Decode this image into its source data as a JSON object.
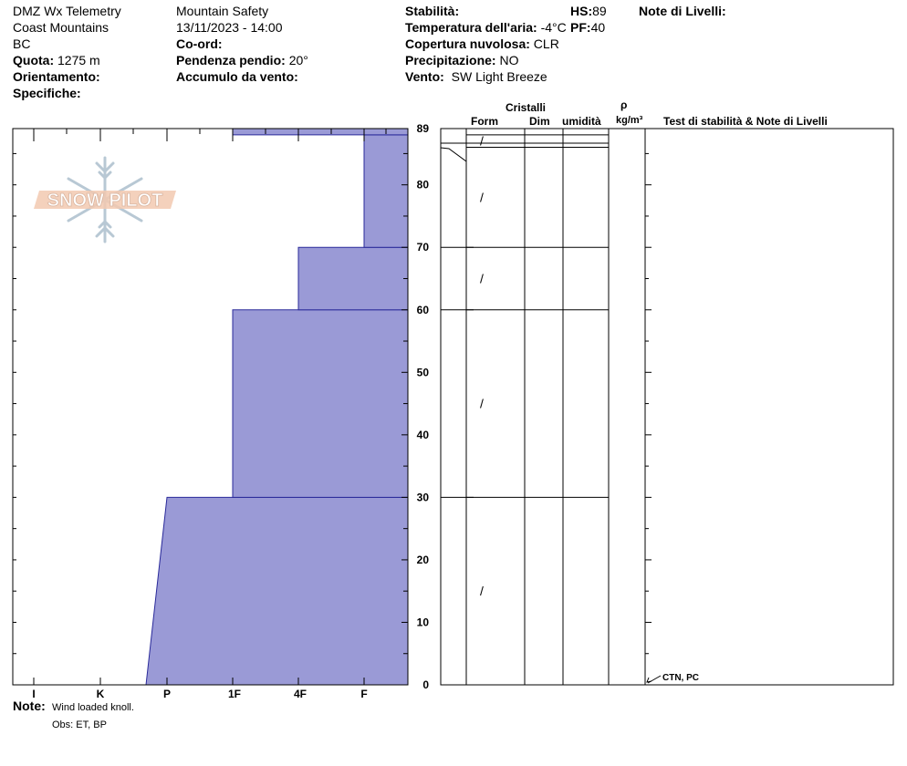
{
  "header": {
    "station": "DMZ Wx Telemetry",
    "range": "Coast Mountains",
    "province": "BC",
    "elevation_label": "Quota:",
    "elevation": "1275 m",
    "aspect_label": "Orientamento:",
    "specifics_label": "Specifiche:",
    "org": "Mountain Safety",
    "datetime": "13/11/2023 - 14:00",
    "coords_label": "Co-ord:",
    "slope_label": "Pendenza pendio:",
    "slope": "20°",
    "windload_label": "Accumulo da vento:",
    "stability_label": "Stabilità:",
    "hs_label": "HS:",
    "hs": "89",
    "airtemp_label": "Temperatura dell'aria:",
    "airtemp": "-4°C",
    "pf_label": "PF:",
    "pf": "40",
    "sky_label": "Copertura nuvolosa:",
    "sky": "CLR",
    "precip_label": "Precipitazione:",
    "precip": "NO",
    "wind_label": "Vento:",
    "wind": "SW Light Breeze",
    "layer_notes_label": "Note di Livelli:"
  },
  "logo": {
    "text": "SNOW PILOT"
  },
  "columns": {
    "crystals": "Cristalli",
    "form": "Form",
    "size": "Dim",
    "moisture": "umidità",
    "rho": "ρ",
    "density_unit": "kg/m³",
    "tests": "Test di stabilità & Note di Livelli"
  },
  "footer": {
    "notes_label": "Note:",
    "notes": "Wind loaded knoll.",
    "obs": "Obs: ET, BP"
  },
  "test_result": {
    "text": "CTN, PC",
    "height": 0
  },
  "chart_data": {
    "type": "area",
    "title": "",
    "y_axis": {
      "min": 0,
      "max": 89,
      "ticks": [
        0,
        10,
        20,
        30,
        40,
        50,
        60,
        70,
        80,
        89
      ]
    },
    "hardness_scale": [
      "I",
      "K",
      "P",
      "1F",
      "4F",
      "F"
    ],
    "hand_hardness_profile": [
      {
        "from_cm": 0,
        "to_cm": 30,
        "hardness_bottom": "P-",
        "hardness_top": "P"
      },
      {
        "from_cm": 30,
        "to_cm": 60,
        "hardness": "1F"
      },
      {
        "from_cm": 60,
        "to_cm": 70,
        "hardness": "4F"
      },
      {
        "from_cm": 70,
        "to_cm": 88,
        "hardness": "F"
      },
      {
        "from_cm": 88,
        "to_cm": 89,
        "hardness": "1F"
      }
    ],
    "layer_boundaries_cm": [
      30,
      60,
      70,
      86,
      88
    ],
    "layers": [
      {
        "from_cm": 0,
        "to_cm": 30,
        "form_symbol": "/"
      },
      {
        "from_cm": 30,
        "to_cm": 60,
        "form_symbol": "/"
      },
      {
        "from_cm": 60,
        "to_cm": 70,
        "form_symbol": "/"
      },
      {
        "from_cm": 70,
        "to_cm": 86,
        "form_symbol": "/"
      },
      {
        "from_cm": 86,
        "to_cm": 88,
        "form_symbol": "/"
      }
    ],
    "colors": {
      "fill": "#9a9ad6",
      "stroke": "#2a2a9a",
      "grid": "#000000"
    }
  }
}
